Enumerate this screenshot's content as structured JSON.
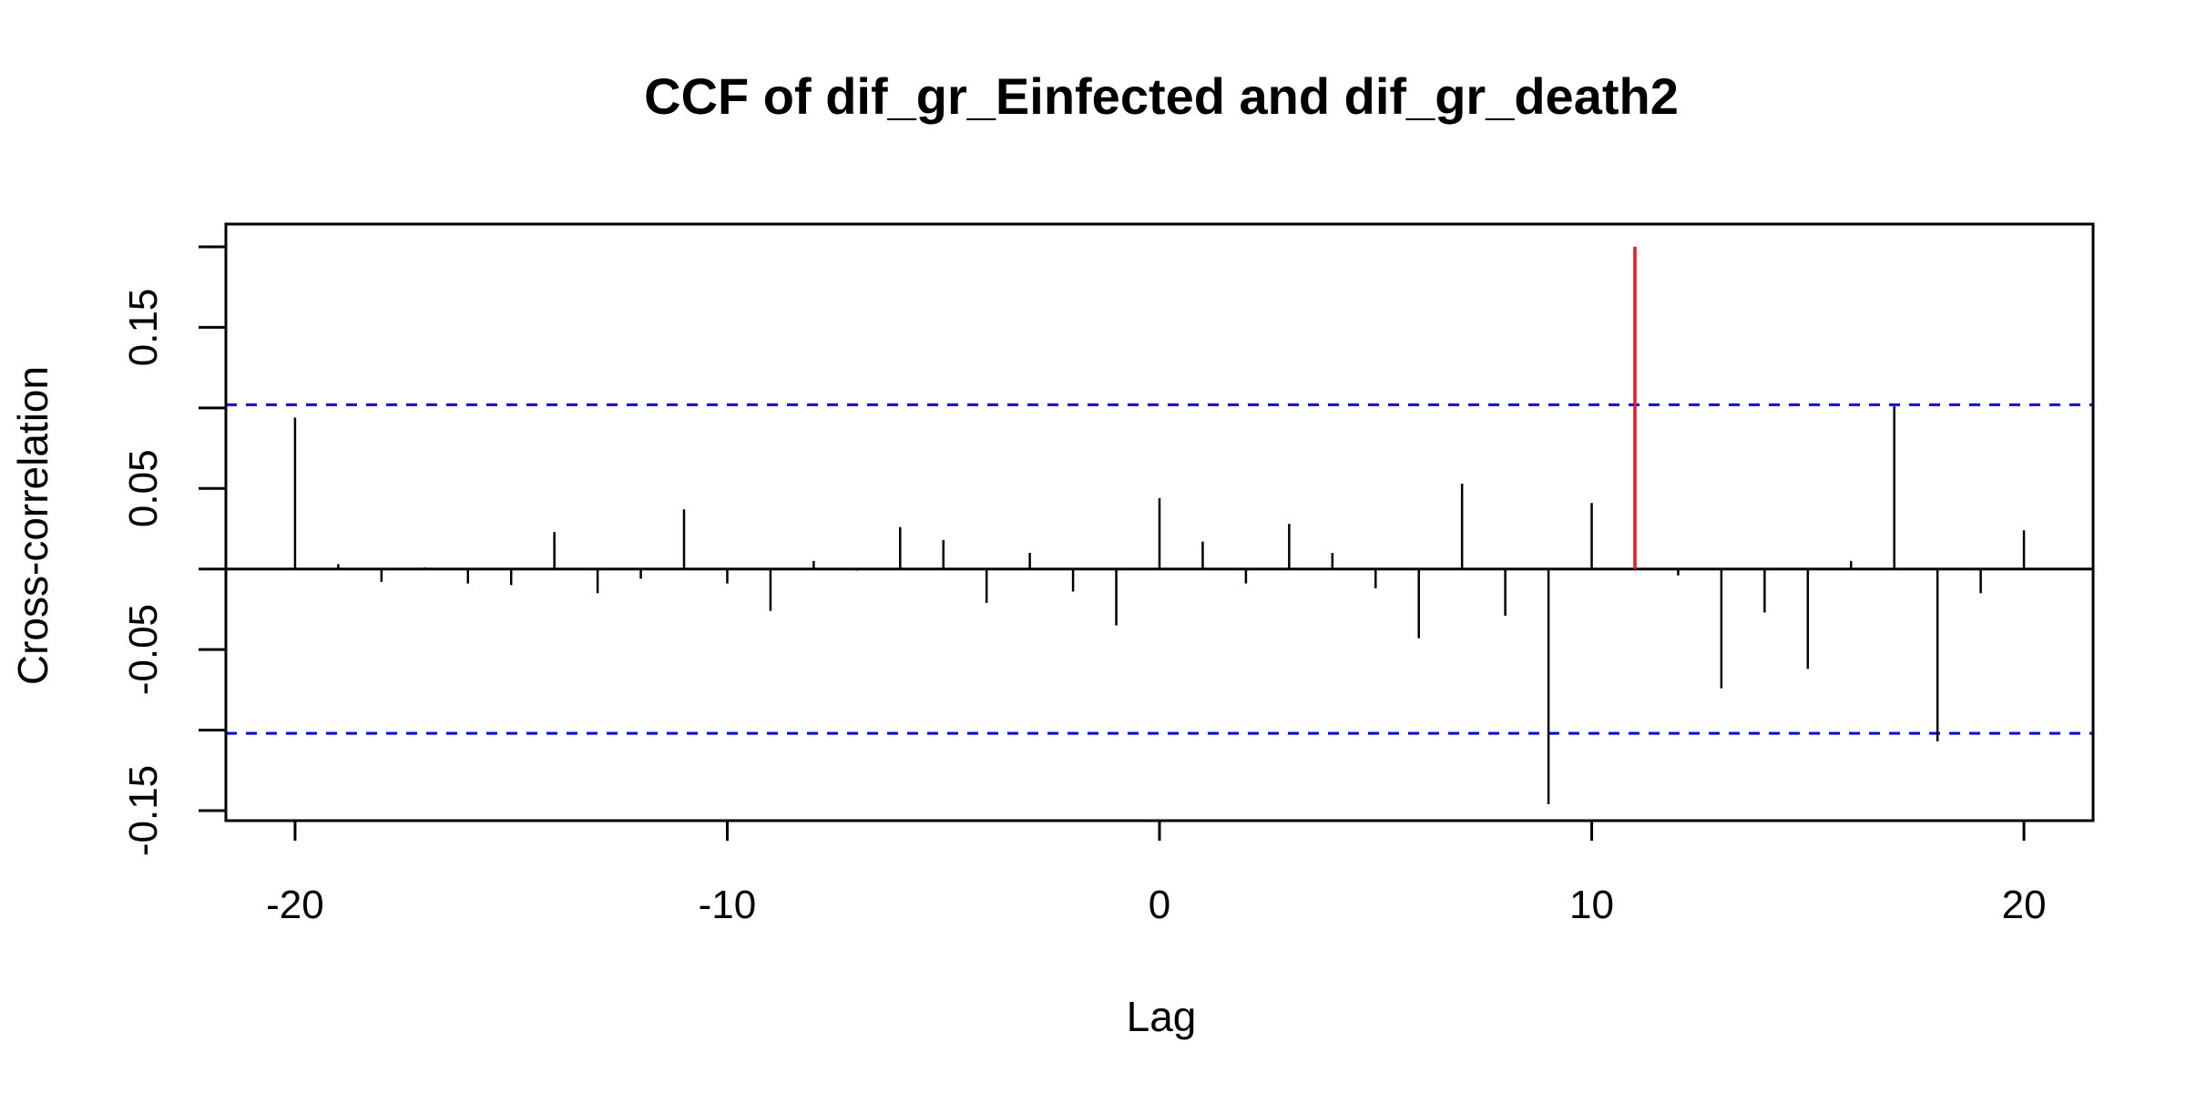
{
  "chart_data": {
    "type": "bar",
    "title": "CCF of dif_gr_Einfected and dif_gr_death2",
    "xlabel": "Lag",
    "ylabel": "Cross-correlation",
    "xlim": [
      -21.6,
      21.6
    ],
    "ylim": [
      -0.15,
      0.2
    ],
    "xticks": [
      -20,
      -10,
      0,
      10,
      20
    ],
    "xtick_labels": [
      "-20",
      "-10",
      "0",
      "10",
      "20"
    ],
    "yticks": [
      -0.15,
      -0.1,
      -0.05,
      0,
      0.05,
      0.1,
      0.15,
      0.2
    ],
    "ytick_labels": [
      "-0.15",
      "",
      "-0.05",
      "",
      "0.05",
      "",
      "0.15",
      ""
    ],
    "confidence_limit": 0.102,
    "highlight_lag": 11,
    "colors": {
      "bars": "#000000",
      "highlight": "#e31a1c",
      "confidence": "#0000ff",
      "zero_line": "#000000"
    },
    "lags": [
      -20,
      -19,
      -18,
      -17,
      -16,
      -15,
      -14,
      -13,
      -12,
      -11,
      -10,
      -9,
      -8,
      -7,
      -6,
      -5,
      -4,
      -3,
      -2,
      -1,
      0,
      1,
      2,
      3,
      4,
      5,
      6,
      7,
      8,
      9,
      10,
      11,
      12,
      13,
      14,
      15,
      16,
      17,
      18,
      19,
      20
    ],
    "values": [
      0.094,
      0.003,
      -0.008,
      0.001,
      -0.009,
      -0.01,
      0.023,
      -0.015,
      -0.006,
      0.037,
      -0.009,
      -0.026,
      0.005,
      -0.001,
      0.026,
      0.018,
      -0.021,
      0.01,
      -0.014,
      -0.035,
      0.044,
      0.017,
      -0.009,
      0.028,
      0.01,
      -0.012,
      -0.043,
      0.053,
      -0.029,
      -0.146,
      0.041,
      0.2,
      -0.004,
      -0.074,
      -0.027,
      -0.062,
      0.005,
      0.101,
      -0.107,
      -0.015,
      0.024
    ]
  }
}
